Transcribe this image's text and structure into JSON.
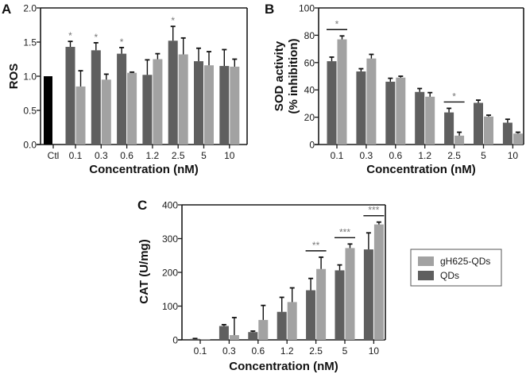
{
  "colors": {
    "qds": "#5f5f5f",
    "gh625": "#a2a2a2",
    "ctl": "#000000",
    "axis": "#1a1a1a",
    "sig": "#777777"
  },
  "legend": {
    "entries": [
      {
        "name": "gH625-QDs",
        "color_key": "gh625"
      },
      {
        "name": "QDs",
        "color_key": "qds"
      }
    ],
    "placement": "right of panel C"
  },
  "chart_data": [
    {
      "panel": "A",
      "type": "bar",
      "title": "",
      "xlabel": "Concentration (nM)",
      "ylabel": "ROS",
      "ylim": [
        0,
        2.0
      ],
      "yticks": [
        "0.0",
        "0.5",
        "1.0",
        "1.5",
        "2.0"
      ],
      "ytick_values": [
        0,
        0.5,
        1.0,
        1.5,
        2.0
      ],
      "control": {
        "label": "Ctl",
        "value": 1.0
      },
      "categories": [
        "0.1",
        "0.3",
        "0.6",
        "1.2",
        "2.5",
        "5",
        "10"
      ],
      "series": [
        {
          "name": "QDs",
          "values": [
            1.43,
            1.38,
            1.33,
            1.02,
            1.52,
            1.22,
            1.15
          ],
          "errors": [
            0.08,
            0.11,
            0.09,
            0.22,
            0.21,
            0.19,
            0.24
          ]
        },
        {
          "name": "gH625-QDs",
          "values": [
            0.85,
            0.95,
            1.05,
            1.25,
            1.32,
            1.16,
            1.14
          ],
          "errors": [
            0.23,
            0.08,
            0.01,
            0.08,
            0.24,
            0.2,
            0.11
          ]
        }
      ],
      "significance": [
        {
          "category": "0.1",
          "label": "*",
          "style": "single"
        },
        {
          "category": "0.3",
          "label": "*",
          "style": "single"
        },
        {
          "category": "0.6",
          "label": "*",
          "style": "single"
        },
        {
          "category": "2.5",
          "label": "*",
          "style": "single"
        }
      ]
    },
    {
      "panel": "B",
      "type": "bar",
      "title": "",
      "xlabel": "Concentration (nM)",
      "ylabel": "SOD activity\n(% inhibition)",
      "ylabel_lines": [
        "SOD activity",
        "(% inhibition)"
      ],
      "ylim": [
        0,
        100
      ],
      "yticks": [
        "0",
        "20",
        "40",
        "60",
        "80",
        "100"
      ],
      "ytick_values": [
        0,
        20,
        40,
        60,
        80,
        100
      ],
      "categories": [
        "0.1",
        "0.3",
        "0.6",
        "1.2",
        "2.5",
        "5",
        "10"
      ],
      "series": [
        {
          "name": "QDs",
          "values": [
            61,
            53.5,
            46,
            38.5,
            23.5,
            30.5,
            16
          ],
          "errors": [
            3,
            2,
            2.5,
            2.5,
            3,
            2,
            2.5
          ]
        },
        {
          "name": "gH625-QDs",
          "values": [
            77,
            63,
            49,
            35,
            6.5,
            20.5,
            8
          ],
          "errors": [
            2.5,
            3,
            1,
            3,
            2.5,
            1,
            1
          ]
        }
      ],
      "significance": [
        {
          "category": "0.1",
          "label": "*",
          "style": "bracket"
        },
        {
          "category": "2.5",
          "label": "*",
          "style": "bracket"
        }
      ]
    },
    {
      "panel": "C",
      "type": "bar",
      "title": "",
      "xlabel": "Concentration (nM)",
      "ylabel": "CAT (U/mg)",
      "ylim": [
        0,
        400
      ],
      "yticks": [
        "0",
        "100",
        "200",
        "300",
        "400"
      ],
      "ytick_values": [
        0,
        100,
        200,
        300,
        400
      ],
      "categories": [
        "0.1",
        "0.3",
        "0.6",
        "1.2",
        "2.5",
        "5",
        "10"
      ],
      "series": [
        {
          "name": "QDs",
          "values": [
            3,
            41,
            23,
            83,
            147,
            206,
            268
          ],
          "errors": [
            1,
            4,
            3,
            43,
            35,
            16,
            49
          ]
        },
        {
          "name": "gH625-QDs",
          "values": [
            2,
            14,
            59,
            112,
            210,
            272,
            342
          ],
          "errors": [
            0,
            52,
            43,
            42,
            35,
            12,
            7
          ]
        }
      ],
      "significance": [
        {
          "category": "2.5",
          "label": "**",
          "style": "bracket"
        },
        {
          "category": "5",
          "label": "***",
          "style": "bracket"
        },
        {
          "category": "10",
          "label": "***",
          "style": "bracket"
        }
      ]
    }
  ],
  "panel_labels": [
    "A",
    "B",
    "C"
  ]
}
